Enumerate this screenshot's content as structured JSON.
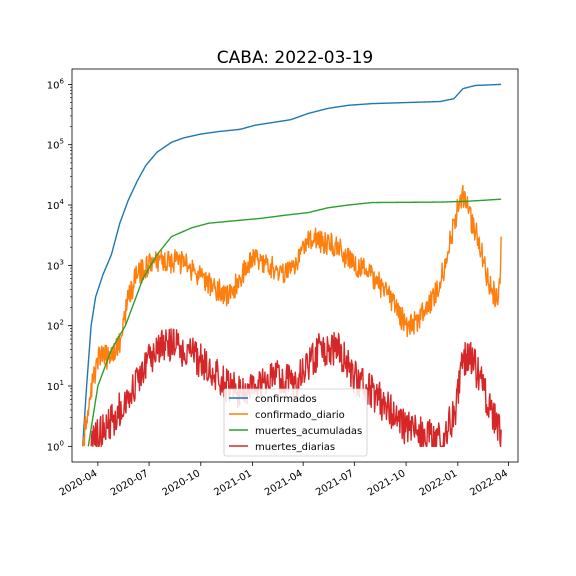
{
  "chart_data": {
    "type": "line",
    "title": "CABA: 2022-03-19",
    "xlabel": "",
    "ylabel": "",
    "y_scale": "log",
    "x_range": [
      "2020-02-15",
      "2022-04-18"
    ],
    "y_range": [
      0.55,
      1800000
    ],
    "y_ticks": [
      {
        "value": 1,
        "label": "10^0"
      },
      {
        "value": 10,
        "label": "10^1"
      },
      {
        "value": 100,
        "label": "10^2"
      },
      {
        "value": 1000,
        "label": "10^3"
      },
      {
        "value": 10000,
        "label": "10^4"
      },
      {
        "value": 100000,
        "label": "10^5"
      },
      {
        "value": 1000000,
        "label": "10^6"
      }
    ],
    "x_ticks": [
      "2020-04",
      "2020-07",
      "2020-10",
      "2021-01",
      "2021-04",
      "2021-07",
      "2021-10",
      "2022-01",
      "2022-04"
    ],
    "grid": false,
    "legend_position": "lower-center",
    "series": [
      {
        "name": "confirmados",
        "color": "#1f77b4",
        "noise": 0,
        "points": [
          [
            "2020-03-05",
            1
          ],
          [
            "2020-03-12",
            10
          ],
          [
            "2020-03-20",
            100
          ],
          [
            "2020-03-28",
            300
          ],
          [
            "2020-04-10",
            700
          ],
          [
            "2020-04-25",
            1500
          ],
          [
            "2020-05-10",
            5000
          ],
          [
            "2020-05-25",
            12000
          ],
          [
            "2020-06-10",
            25000
          ],
          [
            "2020-06-25",
            45000
          ],
          [
            "2020-07-15",
            75000
          ],
          [
            "2020-08-10",
            110000
          ],
          [
            "2020-09-01",
            130000
          ],
          [
            "2020-10-01",
            150000
          ],
          [
            "2020-11-01",
            165000
          ],
          [
            "2020-12-10",
            180000
          ],
          [
            "2021-01-05",
            210000
          ],
          [
            "2021-02-01",
            230000
          ],
          [
            "2021-03-10",
            260000
          ],
          [
            "2021-04-10",
            330000
          ],
          [
            "2021-05-15",
            400000
          ],
          [
            "2021-06-20",
            450000
          ],
          [
            "2021-08-01",
            480000
          ],
          [
            "2021-10-01",
            500000
          ],
          [
            "2021-12-01",
            520000
          ],
          [
            "2021-12-25",
            580000
          ],
          [
            "2022-01-10",
            850000
          ],
          [
            "2022-02-01",
            960000
          ],
          [
            "2022-03-19",
            1000000
          ]
        ]
      },
      {
        "name": "confirmado_diario",
        "color": "#ff7f0e",
        "noise": 0.2,
        "points": [
          [
            "2020-03-05",
            1
          ],
          [
            "2020-03-20",
            8
          ],
          [
            "2020-04-01",
            30
          ],
          [
            "2020-04-20",
            30
          ],
          [
            "2020-05-10",
            50
          ],
          [
            "2020-05-25",
            300
          ],
          [
            "2020-06-10",
            700
          ],
          [
            "2020-07-01",
            1000
          ],
          [
            "2020-08-01",
            1200
          ],
          [
            "2020-09-01",
            1100
          ],
          [
            "2020-10-01",
            600
          ],
          [
            "2020-11-01",
            400
          ],
          [
            "2020-11-20",
            300
          ],
          [
            "2020-12-10",
            600
          ],
          [
            "2021-01-05",
            1500
          ],
          [
            "2021-02-01",
            1000
          ],
          [
            "2021-03-01",
            700
          ],
          [
            "2021-03-20",
            1200
          ],
          [
            "2021-04-10",
            3000
          ],
          [
            "2021-05-01",
            2500
          ],
          [
            "2021-06-01",
            2000
          ],
          [
            "2021-07-01",
            1000
          ],
          [
            "2021-08-01",
            700
          ],
          [
            "2021-09-01",
            300
          ],
          [
            "2021-10-01",
            100
          ],
          [
            "2021-10-20",
            120
          ],
          [
            "2021-11-20",
            300
          ],
          [
            "2021-12-10",
            1000
          ],
          [
            "2021-12-25",
            5000
          ],
          [
            "2022-01-08",
            15000
          ],
          [
            "2022-01-20",
            8000
          ],
          [
            "2022-02-10",
            2000
          ],
          [
            "2022-02-25",
            500
          ],
          [
            "2022-03-10",
            300
          ],
          [
            "2022-03-17",
            400
          ],
          [
            "2022-03-19",
            3000
          ]
        ]
      },
      {
        "name": "muertes_acumuladas",
        "color": "#2ca02c",
        "noise": 0,
        "points": [
          [
            "2020-03-15",
            1
          ],
          [
            "2020-04-01",
            10
          ],
          [
            "2020-04-25",
            40
          ],
          [
            "2020-05-20",
            100
          ],
          [
            "2020-06-20",
            600
          ],
          [
            "2020-07-15",
            1500
          ],
          [
            "2020-08-10",
            3000
          ],
          [
            "2020-09-15",
            4200
          ],
          [
            "2020-10-15",
            5000
          ],
          [
            "2020-12-01",
            5500
          ],
          [
            "2021-01-15",
            6000
          ],
          [
            "2021-03-01",
            6800
          ],
          [
            "2021-04-10",
            7500
          ],
          [
            "2021-05-15",
            9000
          ],
          [
            "2021-06-20",
            10000
          ],
          [
            "2021-08-01",
            11000
          ],
          [
            "2021-12-01",
            11200
          ],
          [
            "2022-01-15",
            11500
          ],
          [
            "2022-03-19",
            12500
          ]
        ]
      },
      {
        "name": "muertes_diarias",
        "color": "#d62728",
        "noise": 0.3,
        "points": [
          [
            "2020-03-20",
            1
          ],
          [
            "2020-04-10",
            2
          ],
          [
            "2020-05-01",
            3
          ],
          [
            "2020-06-01",
            8
          ],
          [
            "2020-07-01",
            25
          ],
          [
            "2020-07-25",
            45
          ],
          [
            "2020-08-20",
            45
          ],
          [
            "2020-09-15",
            35
          ],
          [
            "2020-10-15",
            20
          ],
          [
            "2020-11-15",
            10
          ],
          [
            "2020-12-15",
            8
          ],
          [
            "2021-01-15",
            12
          ],
          [
            "2021-02-15",
            15
          ],
          [
            "2021-03-15",
            10
          ],
          [
            "2021-04-10",
            20
          ],
          [
            "2021-05-01",
            40
          ],
          [
            "2021-06-01",
            40
          ],
          [
            "2021-07-01",
            15
          ],
          [
            "2021-08-01",
            8
          ],
          [
            "2021-09-01",
            4
          ],
          [
            "2021-10-01",
            2
          ],
          [
            "2021-11-01",
            1.5
          ],
          [
            "2021-12-01",
            1.3
          ],
          [
            "2021-12-25",
            3
          ],
          [
            "2022-01-10",
            25
          ],
          [
            "2022-01-25",
            30
          ],
          [
            "2022-02-15",
            10
          ],
          [
            "2022-03-05",
            3
          ],
          [
            "2022-03-19",
            1.5
          ]
        ]
      }
    ]
  }
}
